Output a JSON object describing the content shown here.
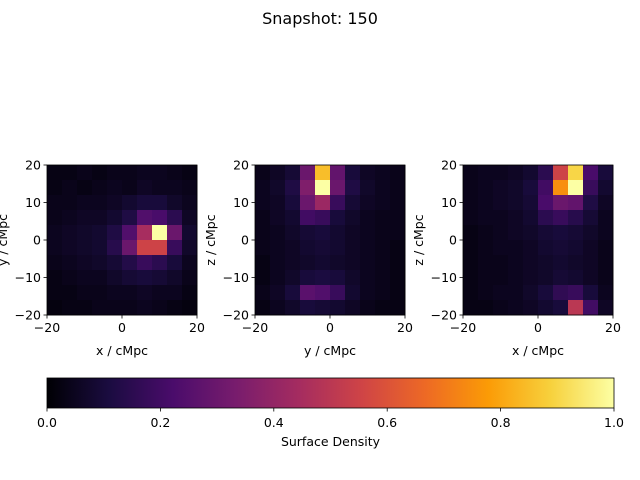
{
  "title": "Snapshot: 150",
  "colorbar": {
    "label": "Surface Density",
    "range": [
      0.0,
      1.0
    ],
    "ticks": [
      0.0,
      0.2,
      0.4,
      0.6,
      0.8,
      1.0
    ],
    "tick_labels": [
      "0.0",
      "0.2",
      "0.4",
      "0.6",
      "0.8",
      "1.0"
    ],
    "colormap": "inferno",
    "colormap_stops": [
      "#000004",
      "#1b0c41",
      "#4a0c6b",
      "#781c6d",
      "#a52c60",
      "#cf4446",
      "#ed6925",
      "#fb9b06",
      "#f7d13d",
      "#fcffa4"
    ]
  },
  "chart_data": [
    {
      "type": "heatmap",
      "xlabel": "x / cMpc",
      "ylabel": "y / cMpc",
      "xlim": [
        -20,
        20
      ],
      "ylim": [
        -20,
        20
      ],
      "xticks": [
        -20,
        0,
        20
      ],
      "yticks": [
        -20,
        -10,
        0,
        10,
        20
      ],
      "bins": 10,
      "values": [
        [
          0.03,
          0.03,
          0.04,
          0.03,
          0.04,
          0.04,
          0.05,
          0.05,
          0.04,
          0.03
        ],
        [
          0.03,
          0.04,
          0.03,
          0.04,
          0.05,
          0.04,
          0.06,
          0.05,
          0.05,
          0.04
        ],
        [
          0.04,
          0.04,
          0.05,
          0.05,
          0.06,
          0.08,
          0.1,
          0.1,
          0.07,
          0.05
        ],
        [
          0.04,
          0.05,
          0.06,
          0.06,
          0.08,
          0.12,
          0.24,
          0.22,
          0.15,
          0.06
        ],
        [
          0.05,
          0.06,
          0.07,
          0.08,
          0.12,
          0.24,
          0.45,
          1.0,
          0.3,
          0.08
        ],
        [
          0.05,
          0.06,
          0.07,
          0.08,
          0.14,
          0.3,
          0.55,
          0.55,
          0.18,
          0.07
        ],
        [
          0.04,
          0.05,
          0.06,
          0.07,
          0.09,
          0.13,
          0.18,
          0.15,
          0.1,
          0.05
        ],
        [
          0.03,
          0.04,
          0.05,
          0.05,
          0.07,
          0.09,
          0.1,
          0.09,
          0.07,
          0.04
        ],
        [
          0.03,
          0.03,
          0.04,
          0.04,
          0.05,
          0.05,
          0.06,
          0.05,
          0.05,
          0.03
        ],
        [
          0.02,
          0.03,
          0.03,
          0.04,
          0.04,
          0.04,
          0.05,
          0.04,
          0.03,
          0.02
        ]
      ]
    },
    {
      "type": "heatmap",
      "xlabel": "y / cMpc",
      "ylabel": "z / cMpc",
      "xlim": [
        -20,
        20
      ],
      "ylim": [
        -20,
        20
      ],
      "xticks": [
        -20,
        0,
        20
      ],
      "yticks": [
        -20,
        -10,
        0,
        10,
        20
      ],
      "bins": 10,
      "values": [
        [
          0.04,
          0.06,
          0.09,
          0.3,
          0.85,
          0.28,
          0.1,
          0.06,
          0.05,
          0.04
        ],
        [
          0.05,
          0.07,
          0.12,
          0.35,
          1.0,
          0.3,
          0.12,
          0.07,
          0.05,
          0.04
        ],
        [
          0.05,
          0.06,
          0.1,
          0.3,
          0.42,
          0.18,
          0.09,
          0.06,
          0.05,
          0.04
        ],
        [
          0.04,
          0.06,
          0.08,
          0.2,
          0.18,
          0.1,
          0.07,
          0.05,
          0.04,
          0.04
        ],
        [
          0.04,
          0.05,
          0.07,
          0.09,
          0.1,
          0.08,
          0.06,
          0.05,
          0.04,
          0.04
        ],
        [
          0.04,
          0.05,
          0.06,
          0.08,
          0.09,
          0.08,
          0.06,
          0.05,
          0.04,
          0.03
        ],
        [
          0.03,
          0.05,
          0.06,
          0.07,
          0.08,
          0.07,
          0.06,
          0.05,
          0.04,
          0.03
        ],
        [
          0.03,
          0.05,
          0.07,
          0.1,
          0.11,
          0.1,
          0.07,
          0.05,
          0.04,
          0.03
        ],
        [
          0.04,
          0.06,
          0.1,
          0.26,
          0.24,
          0.18,
          0.08,
          0.05,
          0.04,
          0.03
        ],
        [
          0.03,
          0.05,
          0.07,
          0.1,
          0.09,
          0.08,
          0.06,
          0.04,
          0.03,
          0.03
        ]
      ]
    },
    {
      "type": "heatmap",
      "xlabel": "x / cMpc",
      "ylabel": "z / cMpc",
      "xlim": [
        -20,
        20
      ],
      "ylim": [
        -20,
        20
      ],
      "xticks": [
        -20,
        0,
        20
      ],
      "yticks": [
        -20,
        -10,
        0,
        10,
        20
      ],
      "bins": 10,
      "values": [
        [
          0.04,
          0.05,
          0.05,
          0.06,
          0.08,
          0.15,
          0.55,
          0.9,
          0.22,
          0.1
        ],
        [
          0.04,
          0.05,
          0.06,
          0.07,
          0.1,
          0.2,
          0.75,
          1.0,
          0.18,
          0.08
        ],
        [
          0.04,
          0.05,
          0.06,
          0.07,
          0.09,
          0.22,
          0.3,
          0.28,
          0.12,
          0.06
        ],
        [
          0.04,
          0.05,
          0.05,
          0.06,
          0.08,
          0.15,
          0.18,
          0.14,
          0.09,
          0.05
        ],
        [
          0.03,
          0.04,
          0.05,
          0.06,
          0.07,
          0.09,
          0.1,
          0.09,
          0.07,
          0.05
        ],
        [
          0.03,
          0.04,
          0.05,
          0.05,
          0.06,
          0.08,
          0.09,
          0.08,
          0.06,
          0.04
        ],
        [
          0.03,
          0.04,
          0.04,
          0.05,
          0.06,
          0.07,
          0.08,
          0.07,
          0.06,
          0.04
        ],
        [
          0.03,
          0.04,
          0.04,
          0.05,
          0.06,
          0.07,
          0.09,
          0.08,
          0.06,
          0.04
        ],
        [
          0.03,
          0.04,
          0.05,
          0.05,
          0.07,
          0.1,
          0.16,
          0.18,
          0.1,
          0.05
        ],
        [
          0.03,
          0.03,
          0.04,
          0.05,
          0.06,
          0.08,
          0.1,
          0.5,
          0.2,
          0.06
        ]
      ]
    }
  ]
}
